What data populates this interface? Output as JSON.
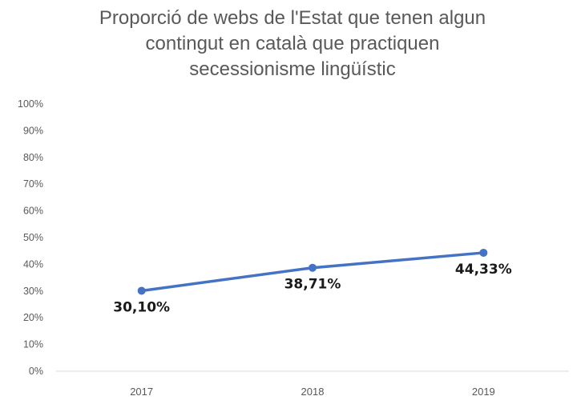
{
  "chart_data": {
    "type": "line",
    "title_lines": [
      "Proporció de webs de l'Estat que tenen algun",
      "contingut en català que practiquen",
      "secessionisme lingüístic"
    ],
    "categories": [
      "2017",
      "2018",
      "2019"
    ],
    "values": [
      30.1,
      38.71,
      44.33
    ],
    "data_labels": [
      "30,10%",
      "38,71%",
      "44,33%"
    ],
    "yticks": [
      "0%",
      "10%",
      "20%",
      "30%",
      "40%",
      "50%",
      "60%",
      "70%",
      "80%",
      "90%",
      "100%"
    ],
    "ylim": [
      0,
      100
    ],
    "xlabel": "",
    "ylabel": "",
    "legend": false,
    "grid": false,
    "line_color": "#4472C4",
    "text_color": "#595959"
  }
}
